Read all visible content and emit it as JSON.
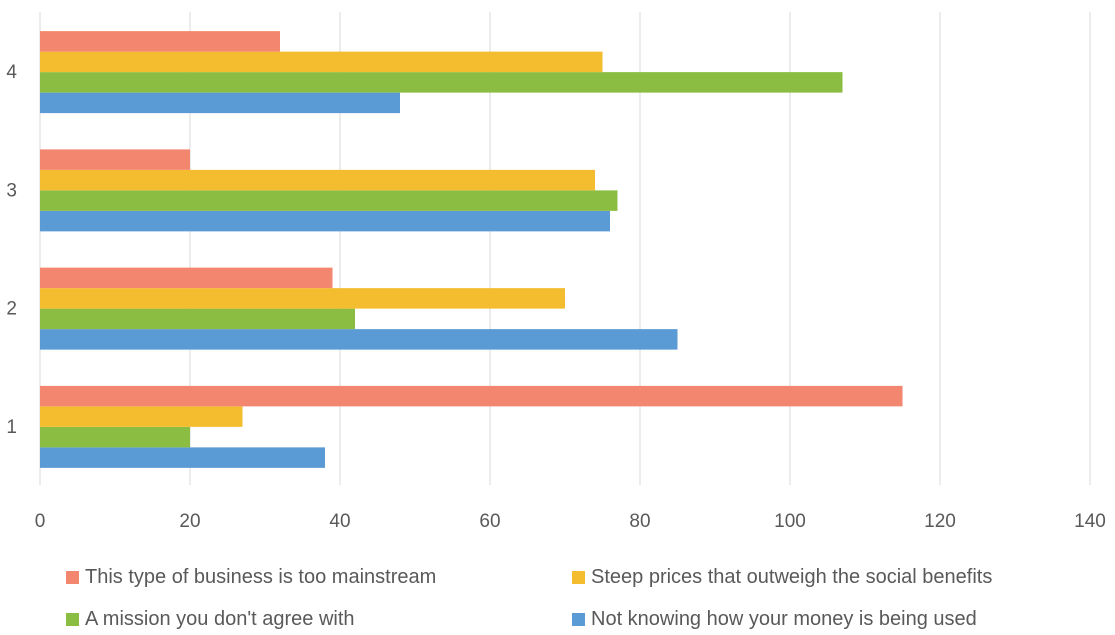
{
  "chart_data": {
    "type": "bar",
    "orientation": "horizontal",
    "categories": [
      "1",
      "2",
      "3",
      "4"
    ],
    "series": [
      {
        "name": "Not knowing how your money is being used",
        "color": "#5b9bd5",
        "values": [
          38,
          85,
          76,
          48
        ]
      },
      {
        "name": "A mission you don't agree with",
        "color": "#8bbd43",
        "values": [
          20,
          42,
          77,
          107
        ]
      },
      {
        "name": "Steep prices that outweigh the social benefits",
        "color": "#f4bd2f",
        "values": [
          27,
          70,
          74,
          75
        ]
      },
      {
        "name": "This type of business is too mainstream",
        "color": "#f3866f",
        "values": [
          115,
          39,
          20,
          32
        ]
      }
    ],
    "xlim": [
      0,
      140
    ],
    "xticks": [
      "0",
      "20",
      "40",
      "60",
      "80",
      "100",
      "120",
      "140"
    ],
    "grid": true,
    "gridline_color": "#d9d9d9",
    "legend_position": "bottom",
    "title": "",
    "xlabel": "",
    "ylabel": ""
  }
}
